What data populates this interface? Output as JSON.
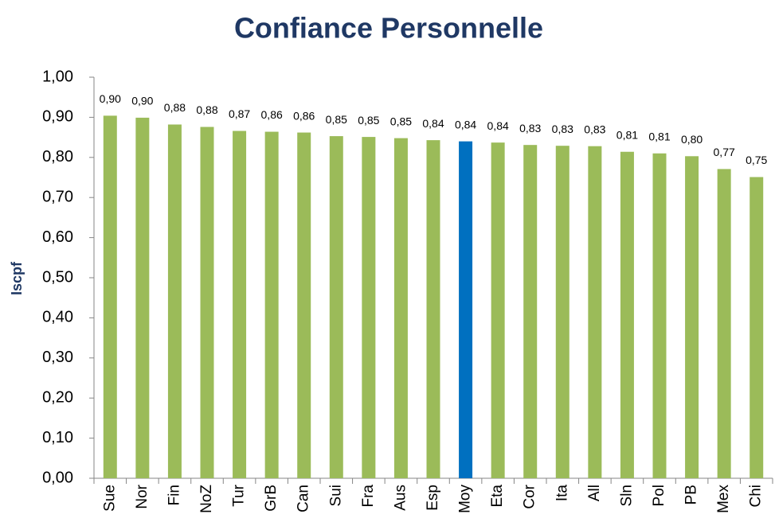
{
  "chart_data": {
    "type": "bar",
    "title": "Confiance Personnelle",
    "y_label": "Iscpf",
    "categories": [
      "Sue",
      "Nor",
      "Fin",
      "NoZ",
      "Tur",
      "GrB",
      "Can",
      "Sui",
      "Fra",
      "Aus",
      "Esp",
      "Moy",
      "Eta",
      "Cor",
      "Ita",
      "All",
      "Sln",
      "Pol",
      "PB",
      "Mex",
      "Chi"
    ],
    "values": [
      0.904,
      0.899,
      0.882,
      0.876,
      0.866,
      0.864,
      0.862,
      0.853,
      0.851,
      0.848,
      0.843,
      0.84,
      0.837,
      0.831,
      0.829,
      0.828,
      0.814,
      0.81,
      0.803,
      0.771,
      0.751
    ],
    "value_labels": [
      "0,90",
      "0,90",
      "0,88",
      "0,88",
      "0,87",
      "0,86",
      "0,86",
      "0,85",
      "0,85",
      "0,85",
      "0,84",
      "0,84",
      "0,84",
      "0,83",
      "0,83",
      "0,83",
      "0,81",
      "0,81",
      "0,80",
      "0,77",
      "0,75"
    ],
    "colors": [
      "#9bbb59",
      "#9bbb59",
      "#9bbb59",
      "#9bbb59",
      "#9bbb59",
      "#9bbb59",
      "#9bbb59",
      "#9bbb59",
      "#9bbb59",
      "#9bbb59",
      "#9bbb59",
      "#0070c0",
      "#9bbb59",
      "#9bbb59",
      "#9bbb59",
      "#9bbb59",
      "#9bbb59",
      "#9bbb59",
      "#9bbb59",
      "#9bbb59",
      "#9bbb59"
    ],
    "ylim": [
      0,
      1
    ],
    "yticks": [
      {
        "value": 0,
        "label": "0,00"
      },
      {
        "value": 0.1,
        "label": "0,10"
      },
      {
        "value": 0.2,
        "label": "0,20"
      },
      {
        "value": 0.3,
        "label": "0,30"
      },
      {
        "value": 0.4,
        "label": "0,40"
      },
      {
        "value": 0.5,
        "label": "0,50"
      },
      {
        "value": 0.6,
        "label": "0,60"
      },
      {
        "value": 0.7,
        "label": "0,70"
      },
      {
        "value": 0.8,
        "label": "0,80"
      },
      {
        "value": 0.9,
        "label": "0,90"
      },
      {
        "value": 1,
        "label": "1,00"
      }
    ],
    "grid": false
  }
}
